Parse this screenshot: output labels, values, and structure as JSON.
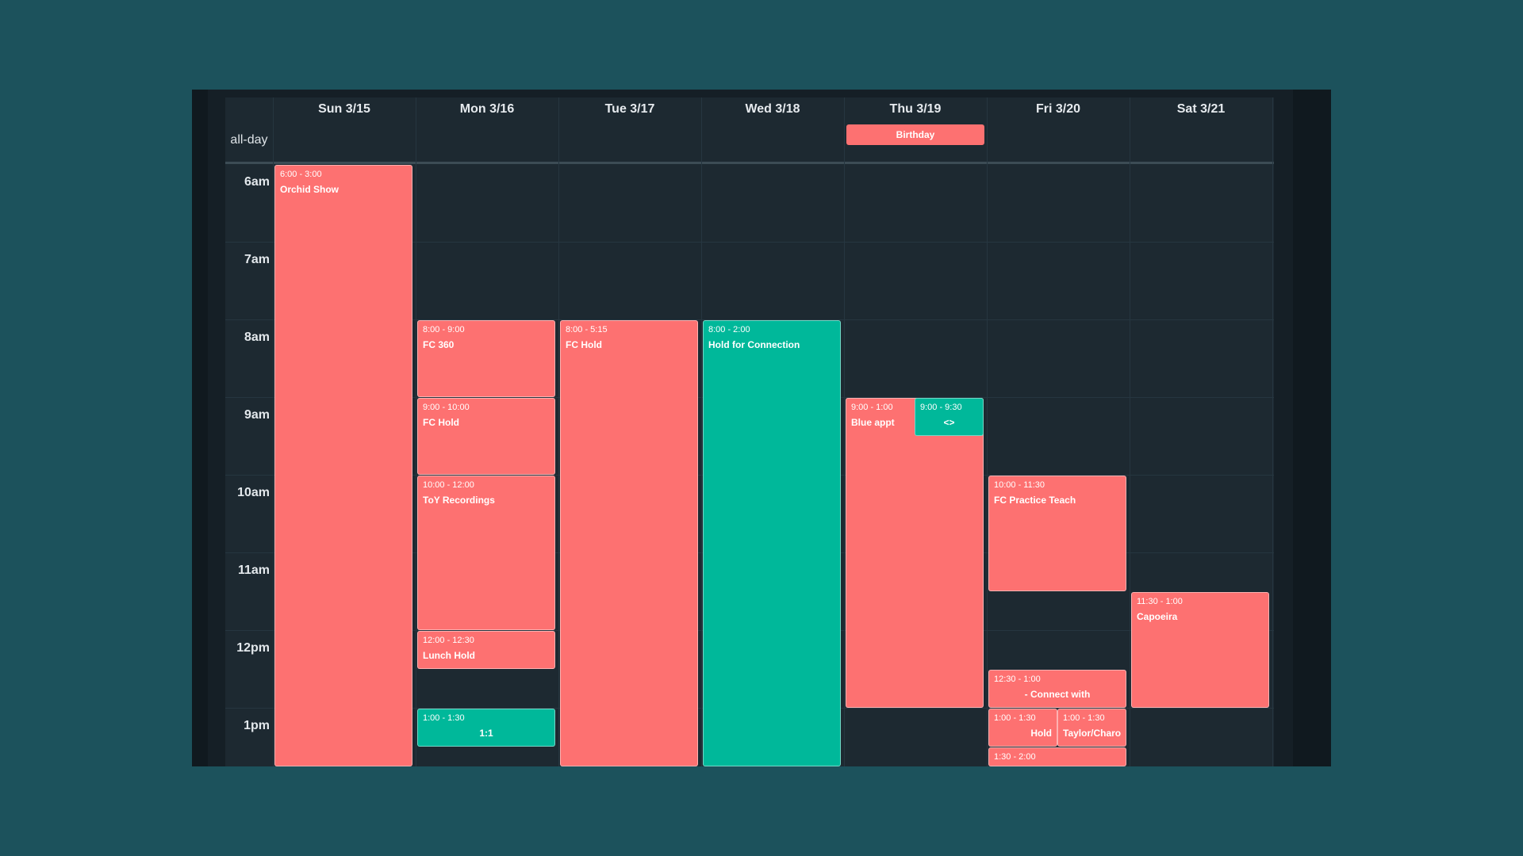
{
  "days": [
    "Sun 3/15",
    "Mon 3/16",
    "Tue 3/17",
    "Wed 3/18",
    "Thu 3/19",
    "Fri 3/20",
    "Sat 3/21"
  ],
  "allday_label": "all-day",
  "allday_event": {
    "day": 4,
    "title": "Birthday",
    "color": "#fd7171"
  },
  "time_labels": [
    "6am",
    "7am",
    "8am",
    "9am",
    "10am",
    "11am",
    "12pm",
    "1pm"
  ],
  "colors": {
    "red": "#fd7171",
    "green": "#00b89a"
  },
  "events": [
    {
      "day": 0,
      "start": 6.0,
      "end": 14.0,
      "time": "6:00 - 3:00",
      "title": "Orchid Show",
      "color": "red"
    },
    {
      "day": 1,
      "start": 8.0,
      "end": 9.0,
      "time": "8:00 - 9:00",
      "title": "FC 360",
      "color": "red"
    },
    {
      "day": 1,
      "start": 9.0,
      "end": 10.0,
      "time": "9:00 - 10:00",
      "title": "FC Hold",
      "color": "red"
    },
    {
      "day": 1,
      "start": 10.0,
      "end": 12.0,
      "time": "10:00 - 12:00",
      "title": "ToY Recordings",
      "color": "red"
    },
    {
      "day": 1,
      "start": 12.0,
      "end": 12.5,
      "time": "12:00 - 12:30",
      "title": "Lunch Hold",
      "color": "red"
    },
    {
      "day": 1,
      "start": 13.0,
      "end": 13.5,
      "time": "1:00 - 1:30",
      "title": "1:1",
      "color": "green",
      "align": "center"
    },
    {
      "day": 2,
      "start": 8.0,
      "end": 14.0,
      "time": "8:00 - 5:15",
      "title": "FC Hold",
      "color": "red"
    },
    {
      "day": 3,
      "start": 8.0,
      "end": 14.0,
      "time": "8:00 - 2:00",
      "title": "Hold for Connection",
      "color": "green"
    },
    {
      "day": 4,
      "start": 9.0,
      "end": 13.0,
      "time": "9:00 - 1:00",
      "title": "Blue appt",
      "color": "red"
    },
    {
      "day": 4,
      "start": 9.0,
      "end": 9.5,
      "time": "9:00 - 9:30",
      "title": "<>",
      "color": "green",
      "align": "center",
      "half": "right"
    },
    {
      "day": 5,
      "start": 10.0,
      "end": 11.5,
      "time": "10:00 - 11:30",
      "title": "FC Practice Teach",
      "color": "red"
    },
    {
      "day": 5,
      "start": 12.5,
      "end": 13.0,
      "time": "12:30 - 1:00",
      "title": "- Connect with",
      "color": "red",
      "align": "center"
    },
    {
      "day": 5,
      "start": 13.0,
      "end": 13.5,
      "time": "1:00 - 1:30",
      "title": "Hold",
      "color": "red",
      "align": "right",
      "half": "left"
    },
    {
      "day": 5,
      "start": 13.0,
      "end": 13.5,
      "time": "1:00 - 1:30",
      "title": "Taylor/Charo",
      "color": "red",
      "half": "right"
    },
    {
      "day": 5,
      "start": 13.5,
      "end": 14.0,
      "time": "1:30 - 2:00",
      "title": "",
      "color": "red"
    },
    {
      "day": 6,
      "start": 11.5,
      "end": 13.0,
      "time": "11:30 - 1:00",
      "title": "Capoeira",
      "color": "red"
    }
  ]
}
